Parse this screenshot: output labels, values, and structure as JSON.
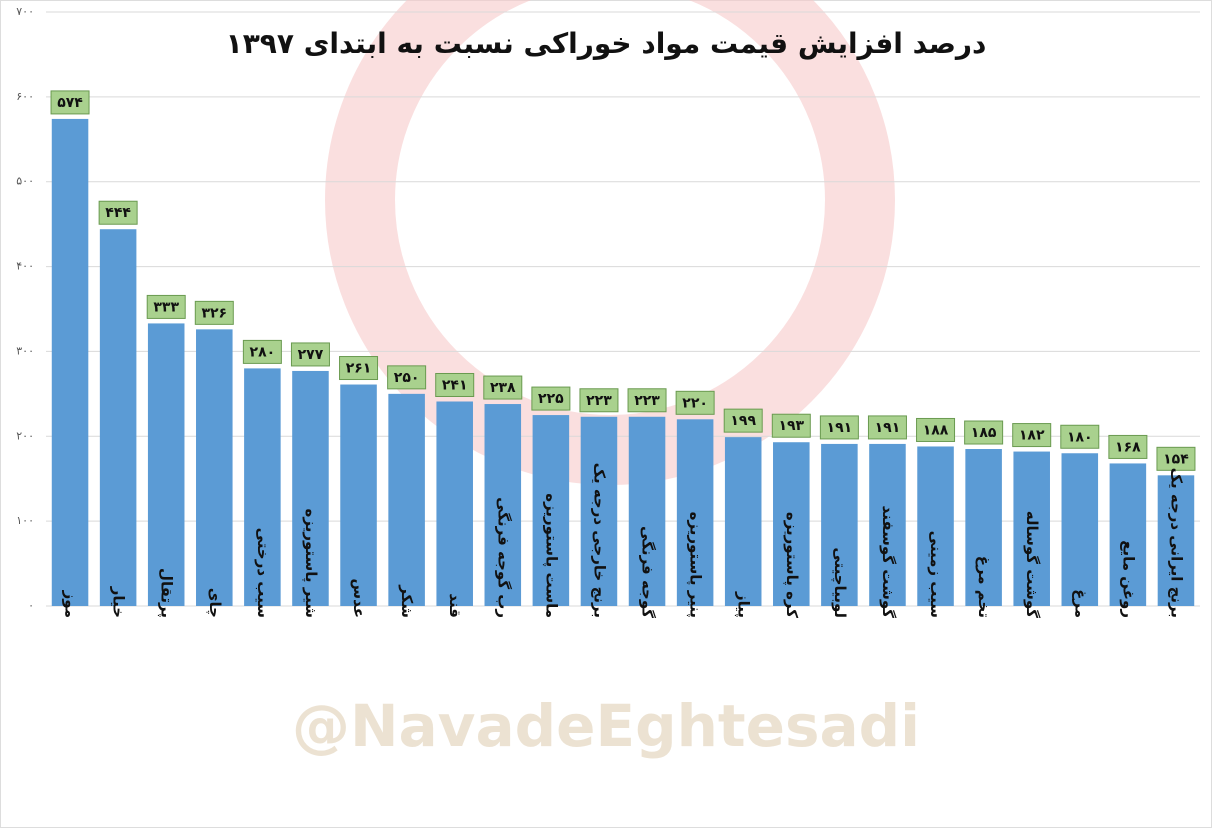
{
  "chart_data": {
    "type": "bar",
    "title": "درصد افزایش قیمت مواد خوراکی نسبت به ابتدای ۱۳۹۷",
    "watermark": "@NavadeEghtesadi",
    "categories": [
      "موز",
      "خیار",
      "پرتقال",
      "چای",
      "سیب درختی",
      "شیر پاستوریزه",
      "عدس",
      "شکر",
      "قند",
      "رب گوجه فرنگی",
      "ماست پاستوریزه",
      "برنج خارجی درجه یک",
      "گوجه فرنگی",
      "پنیر پاستوریزه",
      "پیاز",
      "کره پاستوریزه",
      "لوبیاچیتی",
      "گوشت گوسفند",
      "سیب زمینی",
      "تخم مرغ",
      "گوشت گوساله",
      "مرغ",
      "روغن مایع",
      "برنج ایرانی درجه یک"
    ],
    "values": [
      574,
      444,
      333,
      326,
      280,
      277,
      261,
      250,
      241,
      238,
      225,
      223,
      223,
      220,
      199,
      193,
      191,
      191,
      188,
      185,
      182,
      180,
      168,
      154
    ],
    "value_labels": [
      "۵۷۴",
      "۴۴۴",
      "۳۳۳",
      "۳۲۶",
      "۲۸۰",
      "۲۷۷",
      "۲۶۱",
      "۲۵۰",
      "۲۴۱",
      "۲۳۸",
      "۲۲۵",
      "۲۲۳",
      "۲۲۳",
      "۲۲۰",
      "۱۹۹",
      "۱۹۳",
      "۱۹۱",
      "۱۹۱",
      "۱۸۸",
      "۱۸۵",
      "۱۸۲",
      "۱۸۰",
      "۱۶۸",
      "۱۵۴"
    ],
    "color": "#5b9bd5",
    "label_color": "#a9d18e",
    "ylim": [
      0,
      700
    ],
    "yticks": [
      {
        "value": 0,
        "label": "۰"
      },
      {
        "value": 100,
        "label": "۱۰۰"
      },
      {
        "value": 200,
        "label": "۲۰۰"
      },
      {
        "value": 300,
        "label": "۳۰۰"
      },
      {
        "value": 400,
        "label": "۴۰۰"
      },
      {
        "value": 500,
        "label": "۵۰۰"
      },
      {
        "value": 600,
        "label": "۶۰۰"
      },
      {
        "value": 700,
        "label": "۷۰۰"
      }
    ],
    "grid": true
  }
}
